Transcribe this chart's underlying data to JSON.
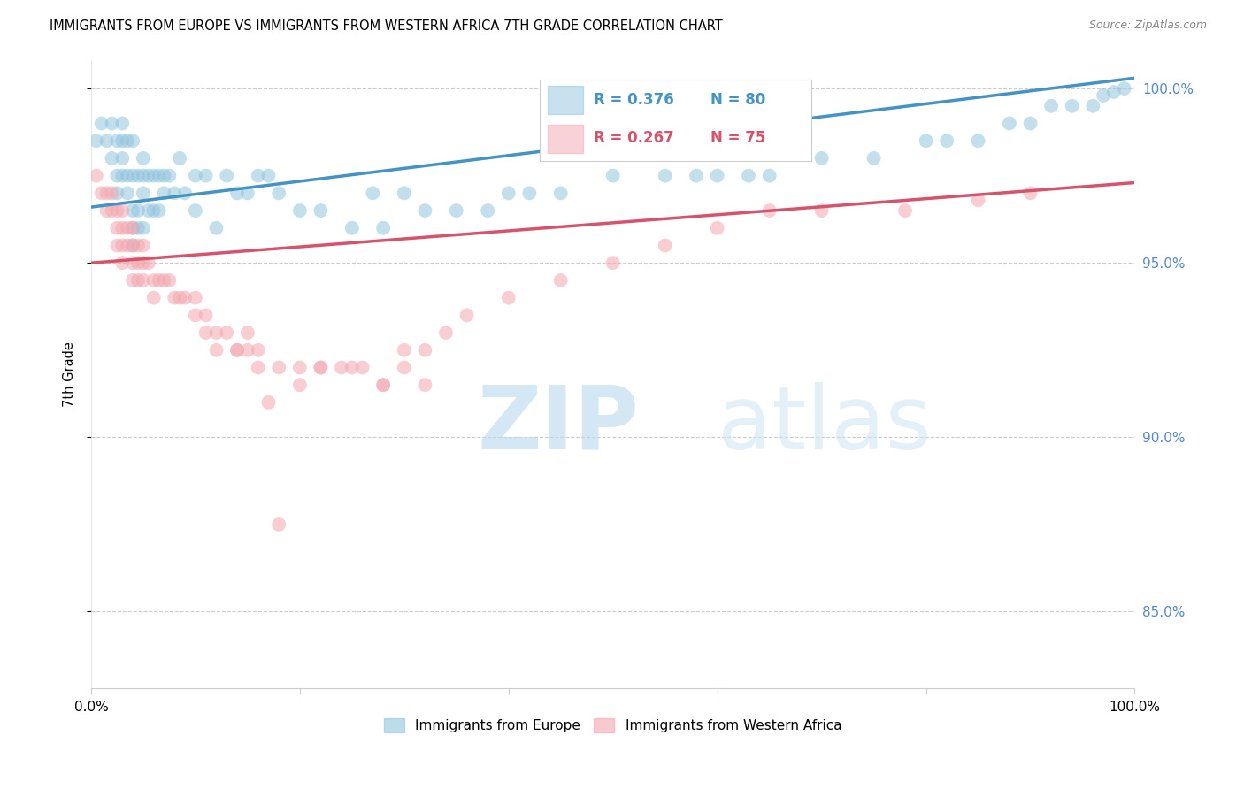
{
  "title": "IMMIGRANTS FROM EUROPE VS IMMIGRANTS FROM WESTERN AFRICA 7TH GRADE CORRELATION CHART",
  "source": "Source: ZipAtlas.com",
  "ylabel": "7th Grade",
  "xlim": [
    0.0,
    1.0
  ],
  "ylim": [
    0.828,
    1.008
  ],
  "yticks": [
    0.85,
    0.9,
    0.95,
    1.0
  ],
  "ytick_labels": [
    "85.0%",
    "90.0%",
    "95.0%",
    "100.0%"
  ],
  "legend_labels": [
    "Immigrants from Europe",
    "Immigrants from Western Africa"
  ],
  "legend_R": [
    0.376,
    0.267
  ],
  "legend_N": [
    80,
    75
  ],
  "blue_color": "#92c5de",
  "pink_color": "#f4a6b0",
  "blue_line_color": "#4393c3",
  "pink_line_color": "#d6536d",
  "watermark_zip_color": "#b8d8ed",
  "watermark_atlas_color": "#cce4f4",
  "blue_x": [
    0.005,
    0.01,
    0.015,
    0.02,
    0.02,
    0.025,
    0.025,
    0.025,
    0.03,
    0.03,
    0.03,
    0.03,
    0.035,
    0.035,
    0.035,
    0.04,
    0.04,
    0.04,
    0.04,
    0.04,
    0.045,
    0.045,
    0.045,
    0.05,
    0.05,
    0.05,
    0.05,
    0.055,
    0.055,
    0.06,
    0.06,
    0.065,
    0.065,
    0.07,
    0.07,
    0.075,
    0.08,
    0.085,
    0.09,
    0.1,
    0.1,
    0.11,
    0.12,
    0.13,
    0.14,
    0.15,
    0.16,
    0.17,
    0.18,
    0.2,
    0.22,
    0.25,
    0.27,
    0.28,
    0.3,
    0.32,
    0.35,
    0.38,
    0.4,
    0.42,
    0.45,
    0.5,
    0.55,
    0.58,
    0.6,
    0.63,
    0.65,
    0.7,
    0.75,
    0.8,
    0.82,
    0.85,
    0.88,
    0.9,
    0.92,
    0.94,
    0.96,
    0.97,
    0.98,
    0.99
  ],
  "blue_y": [
    0.985,
    0.99,
    0.985,
    0.99,
    0.98,
    0.985,
    0.975,
    0.97,
    0.99,
    0.985,
    0.98,
    0.975,
    0.985,
    0.975,
    0.97,
    0.985,
    0.975,
    0.965,
    0.96,
    0.955,
    0.975,
    0.965,
    0.96,
    0.98,
    0.975,
    0.97,
    0.96,
    0.975,
    0.965,
    0.975,
    0.965,
    0.975,
    0.965,
    0.975,
    0.97,
    0.975,
    0.97,
    0.98,
    0.97,
    0.975,
    0.965,
    0.975,
    0.96,
    0.975,
    0.97,
    0.97,
    0.975,
    0.975,
    0.97,
    0.965,
    0.965,
    0.96,
    0.97,
    0.96,
    0.97,
    0.965,
    0.965,
    0.965,
    0.97,
    0.97,
    0.97,
    0.975,
    0.975,
    0.975,
    0.975,
    0.975,
    0.975,
    0.98,
    0.98,
    0.985,
    0.985,
    0.985,
    0.99,
    0.99,
    0.995,
    0.995,
    0.995,
    0.998,
    0.999,
    1.0
  ],
  "pink_x": [
    0.005,
    0.01,
    0.015,
    0.015,
    0.02,
    0.02,
    0.025,
    0.025,
    0.025,
    0.03,
    0.03,
    0.03,
    0.03,
    0.035,
    0.035,
    0.04,
    0.04,
    0.04,
    0.04,
    0.045,
    0.045,
    0.045,
    0.05,
    0.05,
    0.05,
    0.055,
    0.06,
    0.06,
    0.065,
    0.07,
    0.075,
    0.08,
    0.085,
    0.09,
    0.1,
    0.11,
    0.12,
    0.13,
    0.14,
    0.15,
    0.16,
    0.18,
    0.2,
    0.22,
    0.25,
    0.28,
    0.3,
    0.32,
    0.1,
    0.11,
    0.12,
    0.14,
    0.15,
    0.16,
    0.17,
    0.18,
    0.2,
    0.22,
    0.24,
    0.26,
    0.28,
    0.3,
    0.32,
    0.34,
    0.36,
    0.4,
    0.45,
    0.5,
    0.55,
    0.6,
    0.65,
    0.7,
    0.78,
    0.85,
    0.9
  ],
  "pink_y": [
    0.975,
    0.97,
    0.97,
    0.965,
    0.97,
    0.965,
    0.965,
    0.96,
    0.955,
    0.965,
    0.96,
    0.955,
    0.95,
    0.96,
    0.955,
    0.96,
    0.955,
    0.95,
    0.945,
    0.955,
    0.95,
    0.945,
    0.955,
    0.95,
    0.945,
    0.95,
    0.945,
    0.94,
    0.945,
    0.945,
    0.945,
    0.94,
    0.94,
    0.94,
    0.94,
    0.935,
    0.93,
    0.93,
    0.925,
    0.93,
    0.925,
    0.92,
    0.92,
    0.92,
    0.92,
    0.915,
    0.92,
    0.915,
    0.935,
    0.93,
    0.925,
    0.925,
    0.925,
    0.92,
    0.91,
    0.875,
    0.915,
    0.92,
    0.92,
    0.92,
    0.915,
    0.925,
    0.925,
    0.93,
    0.935,
    0.94,
    0.945,
    0.95,
    0.955,
    0.96,
    0.965,
    0.965,
    0.965,
    0.968,
    0.97
  ]
}
